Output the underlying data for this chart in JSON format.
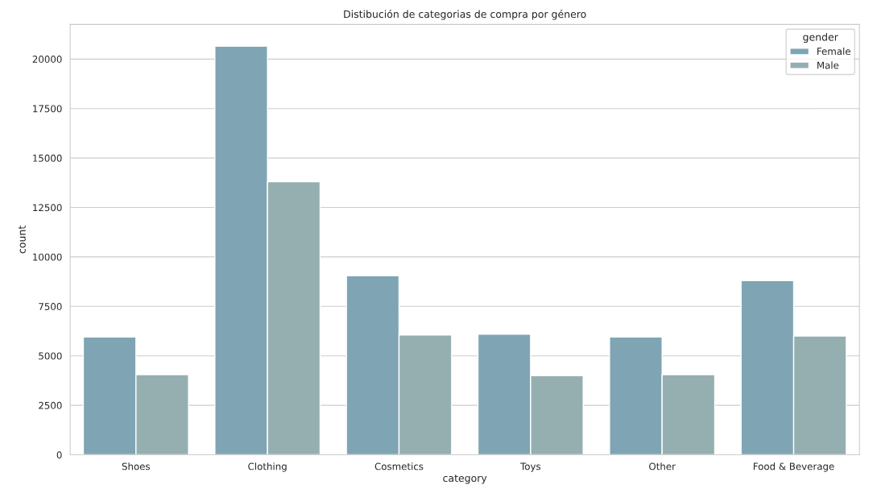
{
  "chart_data": {
    "type": "bar",
    "title": "Distibución de categorias de compra por género",
    "xlabel": "category",
    "ylabel": "count",
    "categories": [
      "Shoes",
      "Clothing",
      "Cosmetics",
      "Toys",
      "Other",
      "Food & Beverage"
    ],
    "series": [
      {
        "name": "Female",
        "color": "#7fa5b4",
        "values": [
          5950,
          20650,
          9050,
          6100,
          5950,
          8800
        ]
      },
      {
        "name": "Male",
        "color": "#95afb1",
        "values": [
          4050,
          13800,
          6050,
          4000,
          4050,
          6000
        ]
      }
    ],
    "legend_title": "gender",
    "legend": "top right",
    "grid": "y",
    "ylim": [
      0,
      21750
    ],
    "yticks": [
      0,
      2500,
      5000,
      7500,
      10000,
      12500,
      15000,
      17500,
      20000
    ]
  }
}
